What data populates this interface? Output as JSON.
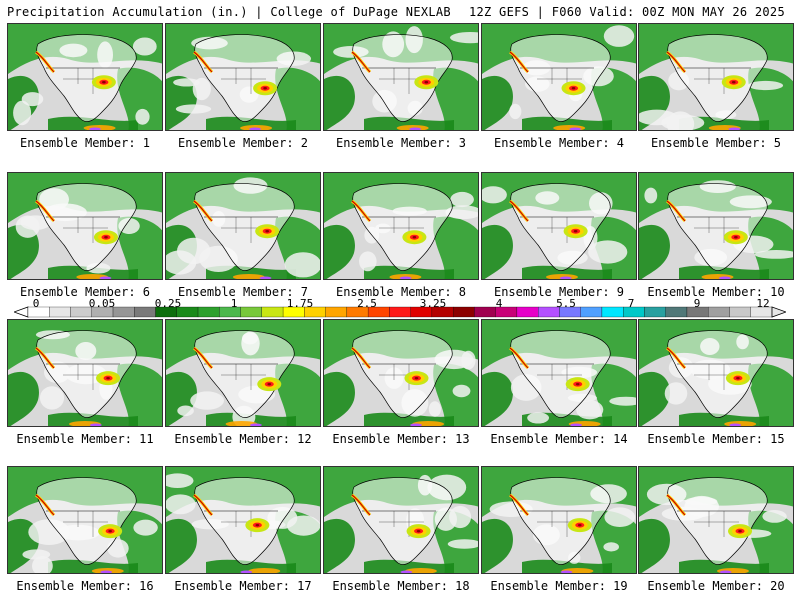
{
  "header": {
    "title_left": "Precipitation Accumulation (in.) | College of DuPage NEXLAB",
    "title_right": "12Z GEFS | F060 Valid: 00Z MON MAY 26 2025"
  },
  "members": [
    {
      "label": "Ensemble Member: 1"
    },
    {
      "label": "Ensemble Member: 2"
    },
    {
      "label": "Ensemble Member: 3"
    },
    {
      "label": "Ensemble Member: 4"
    },
    {
      "label": "Ensemble Member: 5"
    },
    {
      "label": "Ensemble Member: 6"
    },
    {
      "label": "Ensemble Member: 7"
    },
    {
      "label": "Ensemble Member: 8"
    },
    {
      "label": "Ensemble Member: 9"
    },
    {
      "label": "Ensemble Member: 10"
    },
    {
      "label": "Ensemble Member: 11"
    },
    {
      "label": "Ensemble Member: 12"
    },
    {
      "label": "Ensemble Member: 13"
    },
    {
      "label": "Ensemble Member: 14"
    },
    {
      "label": "Ensemble Member: 15"
    },
    {
      "label": "Ensemble Member: 16"
    },
    {
      "label": "Ensemble Member: 17"
    },
    {
      "label": "Ensemble Member: 18"
    },
    {
      "label": "Ensemble Member: 19"
    },
    {
      "label": "Ensemble Member: 20"
    }
  ],
  "colorbar": {
    "labels": [
      "0",
      "0.05",
      "0.25",
      "1",
      "1.75",
      "2.5",
      "3.25",
      "4",
      "5.5",
      "7",
      "9",
      "12"
    ],
    "colors": [
      "#ffffff",
      "#e6e6e6",
      "#cccccc",
      "#b0b0b0",
      "#969696",
      "#7a7a7a",
      "#0c6e0c",
      "#1a8a1a",
      "#2ca02c",
      "#4cb84c",
      "#78c83a",
      "#c8e614",
      "#ffff00",
      "#ffd000",
      "#ffa500",
      "#ff7a00",
      "#ff4500",
      "#ff1a1a",
      "#e00000",
      "#b40000",
      "#8c0000",
      "#a00050",
      "#c80078",
      "#e600c8",
      "#b450ff",
      "#7878ff",
      "#50a0ff",
      "#00e6ff",
      "#00c8c8",
      "#28a0a0",
      "#507878",
      "#787878",
      "#a0a0a0",
      "#c8c8c8",
      "#e6e6e6"
    ]
  }
}
